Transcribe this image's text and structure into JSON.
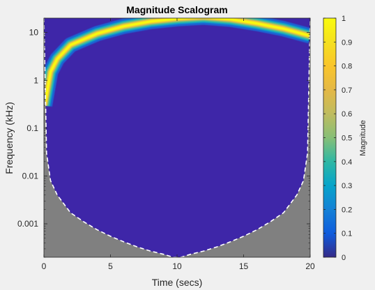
{
  "chart_data": {
    "type": "heatmap",
    "title": "Magnitude Scalogram",
    "xlabel": "Time (secs)",
    "ylabel": "Frequency (kHz)",
    "xlim": [
      0,
      20
    ],
    "ylim": [
      0.0002,
      20
    ],
    "yscale": "log",
    "x_ticks": [
      0,
      5,
      10,
      15,
      20
    ],
    "y_ticks": [
      0.001,
      0.01,
      0.1,
      1,
      10
    ],
    "y_tick_labels": [
      "0.001",
      "0.01",
      "0.1",
      "1",
      "10"
    ],
    "grid": false,
    "colorbar": {
      "label": "Magnitude",
      "ticks": [
        0,
        0.1,
        0.2,
        0.3,
        0.4,
        0.5,
        0.6,
        0.7,
        0.8,
        0.9,
        1
      ],
      "colormap": "parula"
    },
    "ridge": {
      "description_points_time": [
        0.05,
        0.5,
        1,
        2,
        4,
        6,
        8,
        10,
        12,
        14,
        16,
        18,
        20
      ],
      "description_points_freq": [
        0.3,
        1.5,
        2.8,
        5.5,
        9.5,
        13.5,
        17,
        19.5,
        21,
        19,
        15.5,
        12,
        8.5
      ]
    },
    "cone_of_influence": {
      "time": [
        0,
        0.2,
        0.5,
        1,
        2,
        3,
        4,
        5,
        6,
        7,
        8,
        9,
        9.7,
        10.3,
        11,
        12,
        13,
        14,
        15,
        16,
        17,
        18,
        19,
        19.5,
        19.8,
        20
      ],
      "freq": [
        20,
        0.03,
        0.008,
        0.004,
        0.0017,
        0.0011,
        0.00075,
        0.00055,
        0.00042,
        0.00033,
        0.00027,
        0.00023,
        0.0002,
        0.0002,
        0.00023,
        0.00027,
        0.00033,
        0.00042,
        0.00055,
        0.00075,
        0.0011,
        0.0017,
        0.004,
        0.008,
        0.03,
        20
      ]
    },
    "colors": {
      "background": "#3e26a8",
      "ridge_peak": "#f9fb0e",
      "coi_shade": "#808080",
      "coi_line": "#ffffff"
    }
  }
}
